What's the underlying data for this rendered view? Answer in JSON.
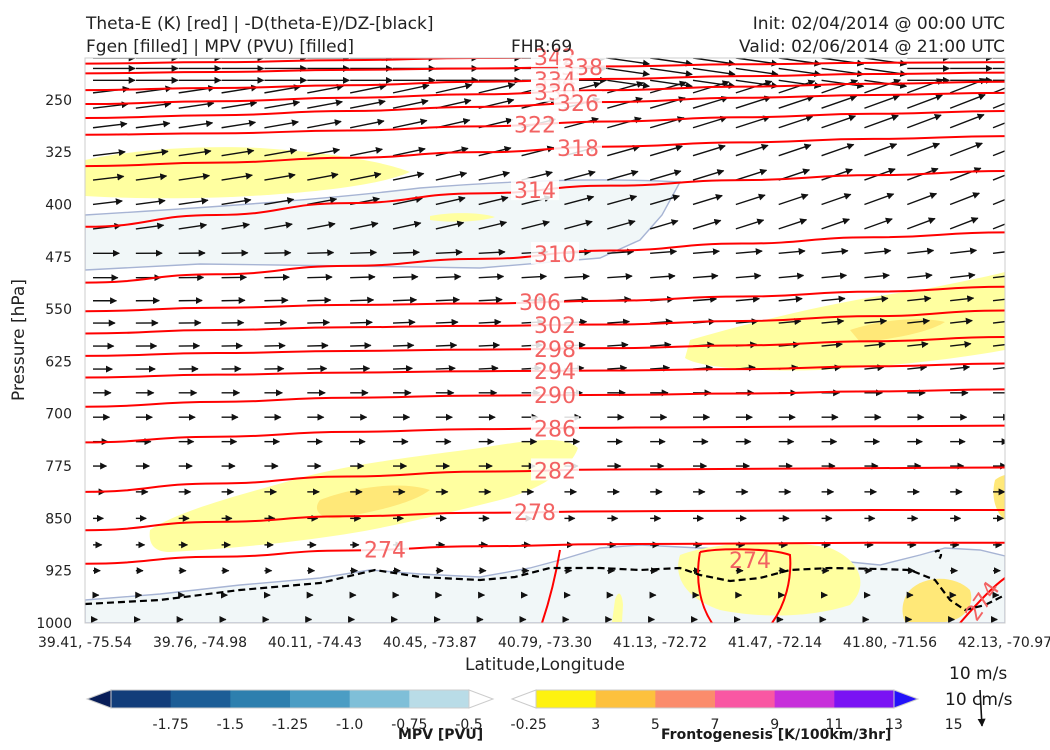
{
  "header": {
    "title_line1": "Theta-E (K) [red] | -D(theta-E)/DZ-[black]",
    "title_line2": "Fgen [filled] | MPV (PVU) [filled]",
    "fhr": "FHR:69",
    "init": "Init: 02/04/2014 @ 00:00 UTC",
    "valid": "Valid: 02/06/2014 @ 21:00 UTC"
  },
  "chart_data": {
    "type": "cross-section",
    "ylabel": "Pressure [hPa]",
    "xlabel": "Latitude,Longitude",
    "y_ticks": [
      250,
      325,
      400,
      475,
      550,
      625,
      700,
      775,
      850,
      925,
      1000
    ],
    "ylim": [
      190,
      1000
    ],
    "x_ticks": [
      "39.41, -75.54",
      "39.76, -74.98",
      "40.11, -74.43",
      "40.45, -73.87",
      "40.79, -73.30",
      "41.13, -72.72",
      "41.47, -72.14",
      "41.80, -71.56",
      "42.13, -70.97"
    ],
    "theta_e_contours": [
      {
        "level": "342",
        "y": [
          198,
          196,
          193,
          190,
          188,
          186,
          185,
          184
        ]
      },
      {
        "level": "338",
        "y": [
          212,
          210,
          207,
          205,
          202,
          199,
          197,
          196
        ]
      },
      {
        "level": "334",
        "y": [
          236,
          233,
          229,
          224,
          220,
          216,
          213,
          211
        ]
      },
      {
        "level": "330",
        "y": [
          256,
          252,
          247,
          242,
          236,
          231,
          227,
          224
        ]
      },
      {
        "level": "326",
        "y": [
          276,
          272,
          266,
          260,
          253,
          247,
          243,
          240
        ]
      },
      {
        "level": "322",
        "y": [
          300,
          298,
          294,
          288,
          281,
          275,
          270,
          266
        ]
      },
      {
        "level": "318",
        "y": [
          345,
          340,
          333,
          325,
          317,
          311,
          306,
          302
        ]
      },
      {
        "level": "314",
        "y": [
          432,
          415,
          398,
          384,
          373,
          365,
          358,
          352
        ]
      },
      {
        "level": "310",
        "y": [
          512,
          500,
          488,
          478,
          466,
          456,
          447,
          440
        ]
      },
      {
        "level": "306",
        "y": [
          553,
          548,
          544,
          542,
          538,
          532,
          525,
          518
        ]
      },
      {
        "level": "302",
        "y": [
          585,
          580,
          576,
          574,
          572,
          567,
          560,
          552
        ]
      },
      {
        "level": "298",
        "y": [
          617,
          613,
          610,
          608,
          606,
          602,
          596,
          590
        ]
      },
      {
        "level": "294",
        "y": [
          648,
          644,
          641,
          639,
          638,
          636,
          632,
          628
        ]
      },
      {
        "level": "290",
        "y": [
          690,
          683,
          677,
          674,
          673,
          671,
          668,
          665
        ]
      },
      {
        "level": "286",
        "y": [
          741,
          733,
          726,
          722,
          720,
          719,
          718,
          717
        ]
      },
      {
        "level": "282",
        "y": [
          812,
          800,
          790,
          783,
          780,
          779,
          778,
          777
        ]
      },
      {
        "level": "278",
        "y": [
          867,
          855,
          847,
          842,
          840,
          839,
          838,
          838
        ]
      },
      {
        "level": "274",
        "y": [
          915,
          905,
          896,
          890,
          887,
          886,
          885,
          885
        ]
      }
    ],
    "legend_mpv": {
      "label": "MPV [PVU]",
      "ticks": [
        "-1.75",
        "-1.5",
        "-1.25",
        "-1.0",
        "-0.75",
        "-0.5",
        "-0.25"
      ],
      "colors": [
        "#081d58",
        "#123d7a",
        "#1c5d96",
        "#2d7fae",
        "#4b9dc4",
        "#7fbfd8",
        "#b9dce7",
        "#ffffff"
      ]
    },
    "legend_fgen": {
      "label": "Frontogenesis [K/100km/3hr]",
      "ticks": [
        "3",
        "5",
        "7",
        "9",
        "11",
        "13",
        "15"
      ],
      "colors": [
        "#ffffff",
        "#fef20f",
        "#fdc13d",
        "#fb8c6c",
        "#f957a3",
        "#c72fda",
        "#7a13f4",
        "#2412fa"
      ]
    },
    "reference_vectors": {
      "horizontal": "10 m/s",
      "vertical": "10 cm/s"
    },
    "colors": {
      "theta_e": "#ff0000",
      "vectors": "#111111",
      "mpv_fill": "#f2f7f8",
      "fgen_fill": "#fff88a",
      "fgen_fill2": "#ffe050"
    }
  }
}
